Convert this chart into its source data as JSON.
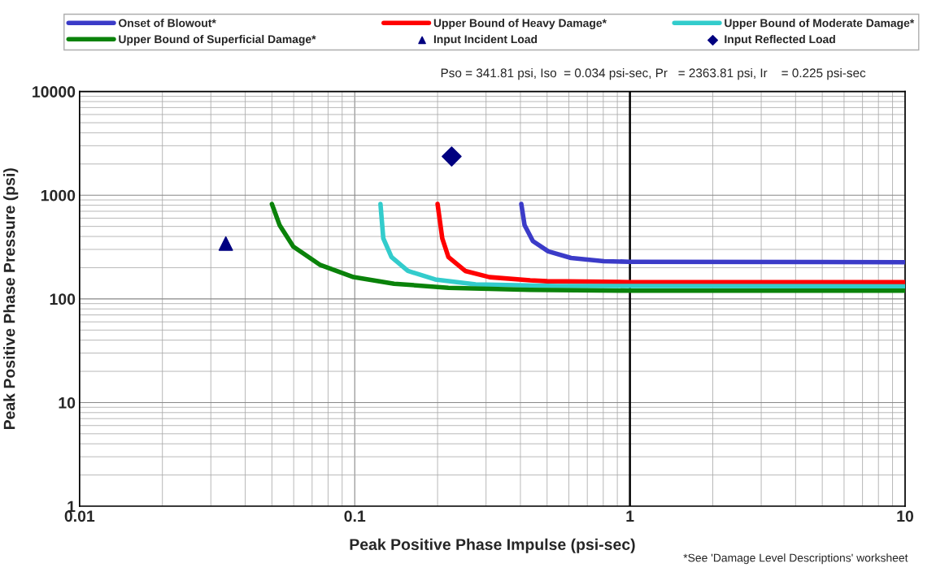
{
  "chart_data": {
    "type": "line",
    "xlabel": "Peak Positive Phase Impulse (psi-sec)",
    "ylabel": "Peak Positive Phase Pressure (psi)",
    "annotations": [
      "Pso = 341.81 psi, Iso  = 0.034 psi-sec, Pr   = 2363.81 psi, Ir    = 0.225 psi-sec",
      "*See 'Damage Level Descriptions' worksheet"
    ],
    "log": "xy",
    "xlim": [
      0.01,
      10
    ],
    "ylim": [
      1,
      10000
    ],
    "xticks": [
      0.01,
      0.1,
      1,
      10
    ],
    "yticks": [
      1,
      10,
      100,
      1000,
      10000
    ],
    "grid": true,
    "legend": "top",
    "line_style": "solid",
    "marker": "none",
    "ref_lines": [
      {
        "axis": "x",
        "value": 1,
        "color": "#000000"
      }
    ],
    "series": [
      {
        "name": "Onset of Blowout*",
        "color": "#3b3bc8",
        "x": [
          0.403,
          0.414,
          0.444,
          0.505,
          0.611,
          0.804,
          1,
          10
        ],
        "values": [
          822,
          516,
          361,
          287,
          248,
          231,
          228,
          226
        ]
      },
      {
        "name": "Upper Bound of Heavy Damage*",
        "color": "#ff0000",
        "x": [
          0.2,
          0.208,
          0.219,
          0.252,
          0.309,
          0.434,
          0.5,
          1,
          10
        ],
        "values": [
          822,
          383,
          253,
          186,
          162,
          151,
          148,
          145,
          145
        ]
      },
      {
        "name": "Upper Bound of Moderate Damage*",
        "color": "#33cccc",
        "x": [
          0.124,
          0.127,
          0.136,
          0.156,
          0.196,
          0.275,
          0.545,
          1,
          10
        ],
        "values": [
          822,
          383,
          253,
          186,
          154,
          138,
          133,
          133,
          132
        ]
      },
      {
        "name": "Upper Bound of Superficial Damage*",
        "color": "#0a820a",
        "x": [
          0.05,
          0.0533,
          0.0598,
          0.075,
          0.099,
          0.139,
          0.219,
          0.434,
          1,
          10
        ],
        "values": [
          822,
          516,
          319,
          212,
          162,
          140,
          128,
          122,
          120,
          120
        ]
      },
      {
        "name": "Input Incident Load",
        "type": "scatter",
        "marker": "triangle",
        "color": "#000080",
        "x": [
          0.034
        ],
        "values": [
          341.81
        ]
      },
      {
        "name": "Input Reflected Load",
        "type": "scatter",
        "marker": "diamond",
        "color": "#000080",
        "x": [
          0.225
        ],
        "values": [
          2363.81
        ]
      }
    ]
  }
}
